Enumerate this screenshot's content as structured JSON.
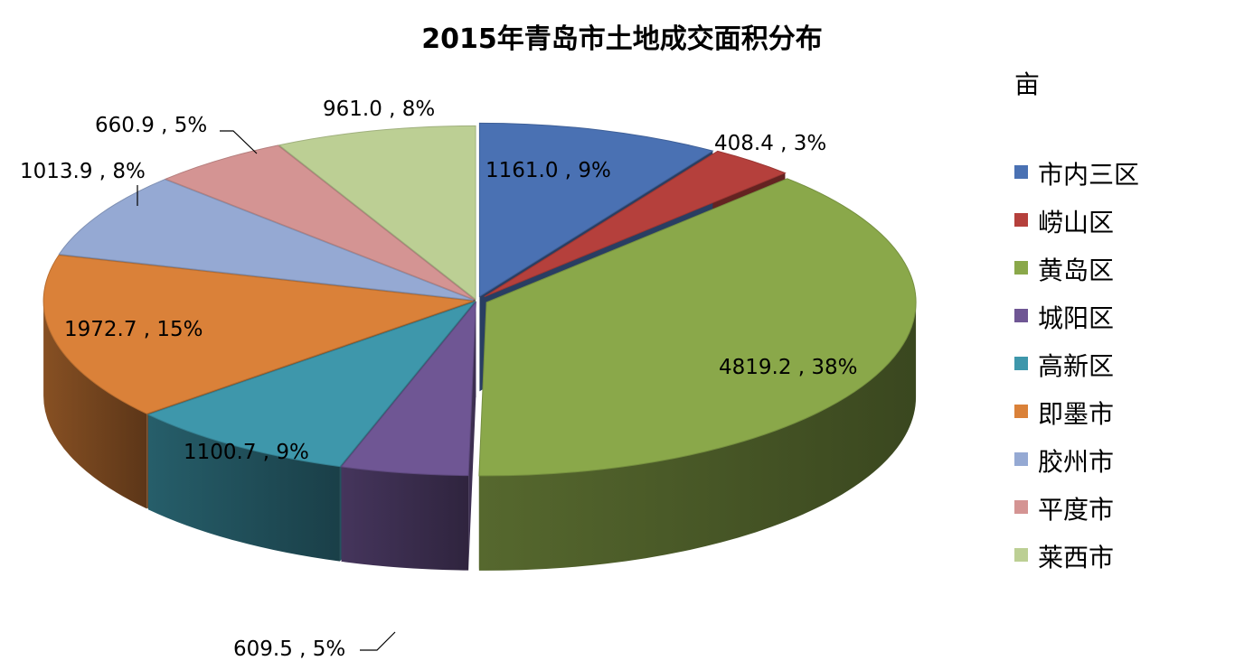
{
  "chart_data": {
    "type": "pie",
    "title": "2015年青岛市土地成交面积分布",
    "unit_label": "亩",
    "slices": [
      {
        "name": "市内三区",
        "value": 1161.0,
        "percent": 9,
        "label": "1161.0 , 9%",
        "color": "#4a71b3"
      },
      {
        "name": "崂山区",
        "value": 408.4,
        "percent": 3,
        "label": "408.4 , 3%",
        "color": "#b5403c"
      },
      {
        "name": "黄岛区",
        "value": 4819.2,
        "percent": 38,
        "label": "4819.2 , 38%",
        "color": "#8aa84a"
      },
      {
        "name": "城阳区",
        "value": 609.5,
        "percent": 5,
        "label": "609.5 , 5%",
        "color": "#6f5694"
      },
      {
        "name": "高新区",
        "value": 1100.7,
        "percent": 9,
        "label": "1100.7 , 9%",
        "color": "#3e97ab"
      },
      {
        "name": "即墨市",
        "value": 1972.7,
        "percent": 15,
        "label": "1972.7 , 15%",
        "color": "#da8139"
      },
      {
        "name": "胶州市",
        "value": 1013.9,
        "percent": 8,
        "label": "1013.9 , 8%",
        "color": "#95a9d3"
      },
      {
        "name": "平度市",
        "value": 660.9,
        "percent": 5,
        "label": "660.9 , 5%",
        "color": "#d49493"
      },
      {
        "name": "莱西市",
        "value": 961.0,
        "percent": 8,
        "label": "961.0 , 8%",
        "color": "#bccf94"
      }
    ],
    "legend_position": "right"
  }
}
